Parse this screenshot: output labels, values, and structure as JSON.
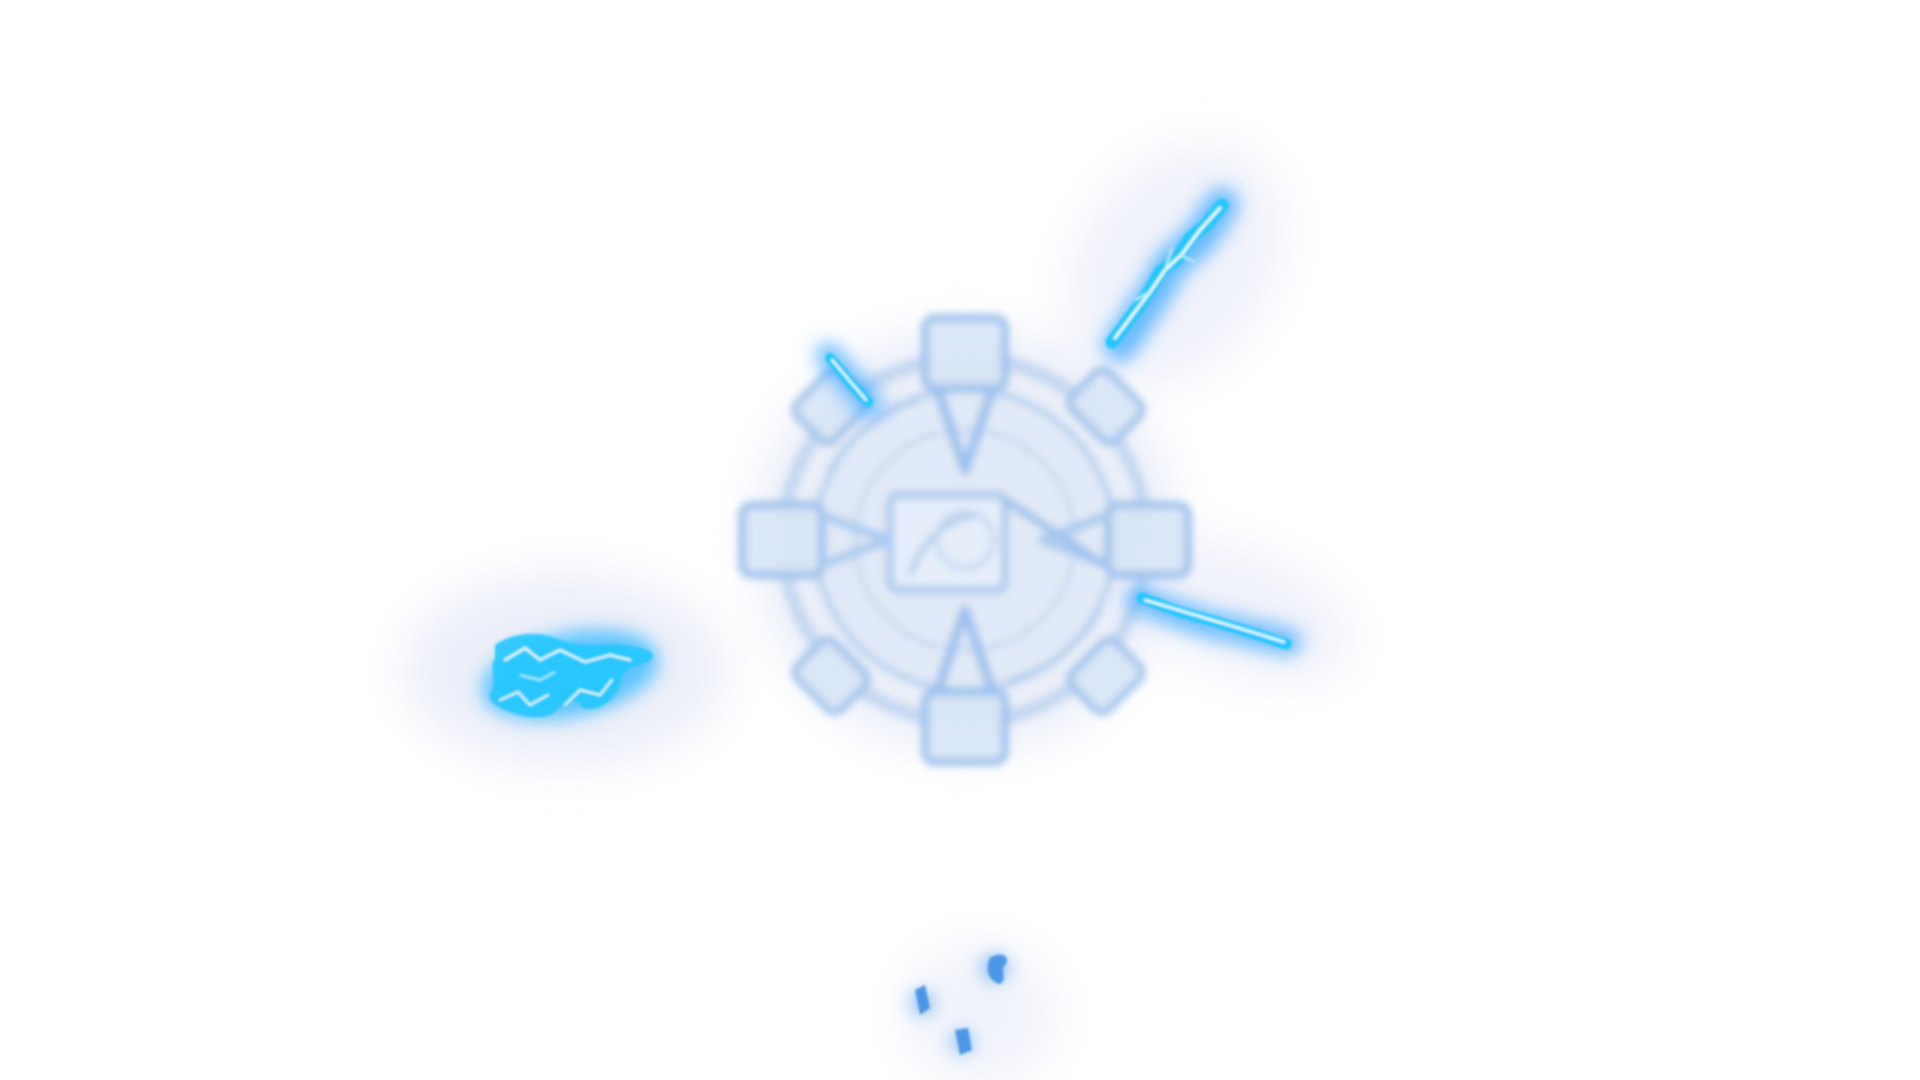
{
  "colors": {
    "background": "#ffffff",
    "halo": "#e6ebf8",
    "glyph_frame": "#9ec4ee",
    "glyph_frame_dark": "#7fb0e6",
    "glyph_fill": "#d4e4f7",
    "bolt_core": "#eafcff",
    "bolt_glow": "#20c8ff",
    "bolt_mid": "#3aa8ff"
  },
  "icons": {
    "central_glyph": "rune-gear-icon",
    "bolts": "lightning-bolt-icon",
    "splash": "electric-splash-icon",
    "fragments": "spark-fragment-icon"
  }
}
